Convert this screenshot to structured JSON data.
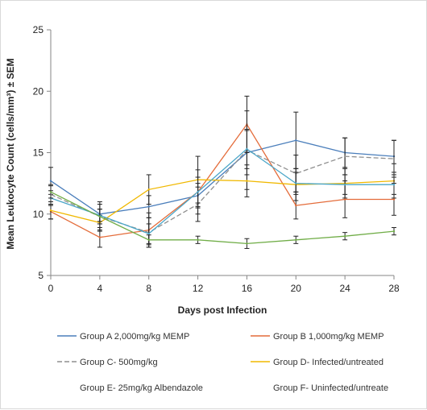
{
  "chart_data": {
    "type": "line",
    "title": "",
    "xlabel": "Days post Infection",
    "ylabel": "Mean Leukocyte Count (cells/mm³) ± SEM",
    "x": [
      0,
      4,
      8,
      12,
      16,
      20,
      24,
      28
    ],
    "x_ticks": [
      "0",
      "4",
      "8",
      "12",
      "16",
      "20",
      "24",
      "28"
    ],
    "xlim": [
      0,
      28
    ],
    "ylim": [
      5,
      25
    ],
    "y_ticks": [
      "5",
      "10",
      "15",
      "20",
      "25"
    ],
    "grid": false,
    "legend_position": "bottom",
    "series": [
      {
        "name": "Group A  2,000mg/kg MEMP",
        "color": "#4a7ebb",
        "values": [
          12.7,
          10.0,
          10.6,
          11.5,
          15.0,
          16.0,
          15.0,
          14.7
        ],
        "errors": [
          1.1,
          0.8,
          0.9,
          1.0,
          1.8,
          2.3,
          1.2,
          1.3
        ]
      },
      {
        "name": "Group B  1,000mg/kg MEMP",
        "color": "#e46c3a",
        "values": [
          10.2,
          8.1,
          8.7,
          11.8,
          17.3,
          10.7,
          11.2,
          11.2
        ],
        "errors": [
          0.6,
          0.8,
          1.4,
          1.8,
          2.3,
          1.1,
          1.5,
          1.3
        ]
      },
      {
        "name": "Group C- 500mg/kg",
        "color": "#8f8f8f",
        "values": [
          11.6,
          9.8,
          8.5,
          10.8,
          15.2,
          13.3,
          14.7,
          14.5
        ],
        "errors": [
          0.8,
          1.2,
          1.2,
          1.4,
          3.2,
          1.5,
          1.5,
          1.5
        ]
      },
      {
        "name": "Group D- Infected/untreated",
        "color": "#f0b800",
        "values": [
          10.3,
          9.3,
          12.0,
          12.8,
          12.7,
          12.4,
          12.5,
          12.7
        ],
        "errors": [
          0.7,
          0.6,
          1.2,
          1.9,
          1.3,
          1.3,
          1.2,
          1.4
        ]
      },
      {
        "name": "Group E- 25mg/kg Albendazole",
        "color": "#4aa6c8",
        "values": [
          11.3,
          9.9,
          8.4,
          11.8,
          15.3,
          12.5,
          12.4,
          12.4
        ],
        "errors": [
          0.6,
          0.5,
          0.8,
          1.2,
          1.6,
          0.9,
          0.8,
          0.8
        ]
      },
      {
        "name": "Group F- Uninfected/untreated",
        "color": "#70ad47",
        "values": [
          11.8,
          9.8,
          7.9,
          7.9,
          7.6,
          7.9,
          8.2,
          8.6
        ],
        "errors": [
          0.5,
          0.6,
          0.4,
          0.3,
          0.4,
          0.3,
          0.3,
          0.3
        ]
      }
    ],
    "legend_labels": [
      "Group A  2,000mg/kg MEMP",
      "Group B  1,000mg/kg MEMP",
      "Group C- 500mg/kg",
      "Group D- Infected/untreated",
      "Group E- 25mg/kg Albendazole",
      "Group F- Uninfected/untreate"
    ]
  }
}
